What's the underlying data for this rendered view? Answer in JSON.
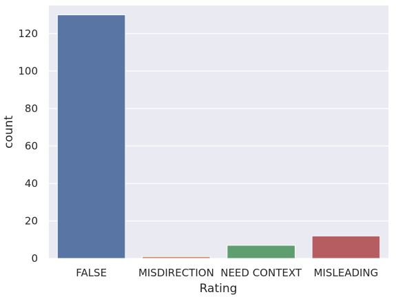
{
  "chart_data": {
    "type": "bar",
    "title": "",
    "xlabel": "Rating",
    "ylabel": "count",
    "categories": [
      "FALSE",
      "MISDIRECTION",
      "NEED CONTEXT",
      "MISLEADING"
    ],
    "values": [
      130,
      1,
      7,
      12
    ],
    "colors": [
      "#5875a4",
      "#cc8963",
      "#5f9e6e",
      "#b55d60"
    ],
    "ylim": [
      0,
      135
    ],
    "yticks": [
      0,
      20,
      40,
      60,
      80,
      100,
      120
    ],
    "grid": true,
    "legend": null,
    "style": {
      "background": "#eaeaf2",
      "grid_color": "#ffffff"
    }
  }
}
